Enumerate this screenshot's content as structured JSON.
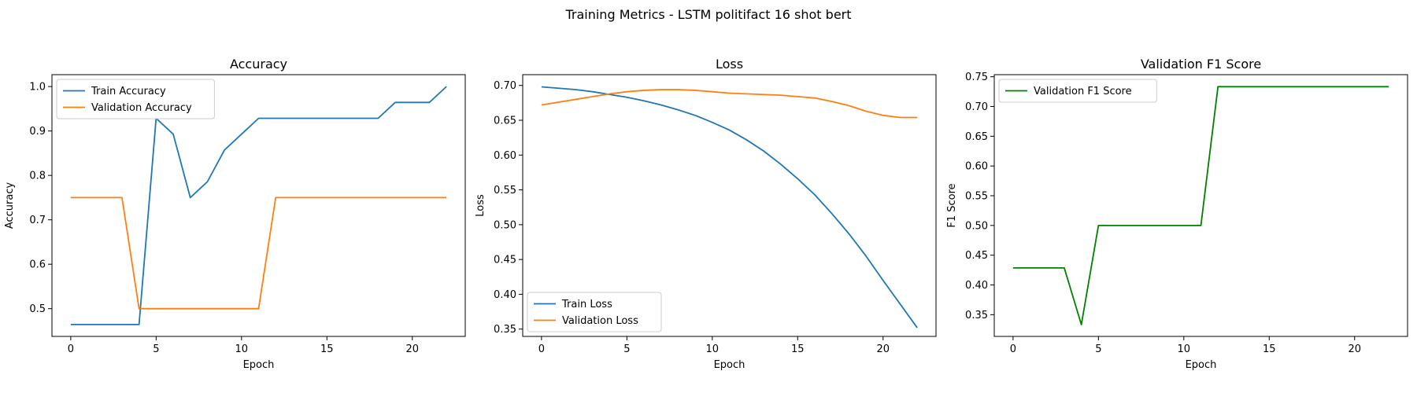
{
  "figure": {
    "suptitle": "Training Metrics - LSTM politifact 16 shot bert"
  },
  "chart_data": [
    {
      "type": "line",
      "title": "Accuracy",
      "xlabel": "Epoch",
      "ylabel": "Accuracy",
      "xlim": [
        -1.1,
        23.1
      ],
      "ylim": [
        0.4375,
        1.0268
      ],
      "xticks": [
        0,
        5,
        10,
        15,
        20
      ],
      "yticks": [
        0.5,
        0.6,
        0.7,
        0.8,
        0.9,
        1.0
      ],
      "ytick_labels": [
        "0.5",
        "0.6",
        "0.7",
        "0.8",
        "0.9",
        "1.0"
      ],
      "legend": "top-left",
      "grid": false,
      "x": [
        0,
        1,
        2,
        3,
        4,
        5,
        6,
        7,
        8,
        9,
        10,
        11,
        12,
        13,
        14,
        15,
        16,
        17,
        18,
        19,
        20,
        21,
        22
      ],
      "series": [
        {
          "name": "Train Accuracy",
          "color": "#1f77b4",
          "values": [
            0.4643,
            0.4643,
            0.4643,
            0.4643,
            0.4643,
            0.9286,
            0.8929,
            0.75,
            0.7857,
            0.8571,
            0.8929,
            0.9286,
            0.9286,
            0.9286,
            0.9286,
            0.9286,
            0.9286,
            0.9286,
            0.9286,
            0.9643,
            0.9643,
            0.9643,
            1.0
          ]
        },
        {
          "name": "Validation Accuracy",
          "color": "#ff7f0e",
          "values": [
            0.75,
            0.75,
            0.75,
            0.75,
            0.5,
            0.5,
            0.5,
            0.5,
            0.5,
            0.5,
            0.5,
            0.5,
            0.75,
            0.75,
            0.75,
            0.75,
            0.75,
            0.75,
            0.75,
            0.75,
            0.75,
            0.75,
            0.75
          ]
        }
      ]
    },
    {
      "type": "line",
      "title": "Loss",
      "xlabel": "Epoch",
      "ylabel": "Loss",
      "xlim": [
        -1.1,
        23.1
      ],
      "ylim": [
        0.3395,
        0.7155
      ],
      "xticks": [
        0,
        5,
        10,
        15,
        20
      ],
      "yticks": [
        0.35,
        0.4,
        0.45,
        0.5,
        0.55,
        0.6,
        0.65,
        0.7
      ],
      "ytick_labels": [
        "0.35",
        "0.40",
        "0.45",
        "0.50",
        "0.55",
        "0.60",
        "0.65",
        "0.70"
      ],
      "legend": "bottom-left",
      "grid": false,
      "x": [
        0,
        1,
        2,
        3,
        4,
        5,
        6,
        7,
        8,
        9,
        10,
        11,
        12,
        13,
        14,
        15,
        16,
        17,
        18,
        19,
        20,
        21,
        22
      ],
      "series": [
        {
          "name": "Train Loss",
          "color": "#1f77b4",
          "values": [
            0.698,
            0.696,
            0.694,
            0.691,
            0.687,
            0.683,
            0.678,
            0.672,
            0.665,
            0.657,
            0.647,
            0.636,
            0.622,
            0.606,
            0.587,
            0.566,
            0.543,
            0.516,
            0.487,
            0.455,
            0.42,
            0.386,
            0.352
          ]
        },
        {
          "name": "Validation Loss",
          "color": "#ff7f0e",
          "values": [
            0.672,
            0.676,
            0.68,
            0.684,
            0.688,
            0.691,
            0.693,
            0.694,
            0.694,
            0.693,
            0.691,
            0.689,
            0.688,
            0.687,
            0.686,
            0.684,
            0.682,
            0.677,
            0.671,
            0.663,
            0.657,
            0.654,
            0.654
          ]
        }
      ]
    },
    {
      "type": "line",
      "title": "Validation F1 Score",
      "xlabel": "Epoch",
      "ylabel": "F1 Score",
      "xlim": [
        -1.1,
        23.1
      ],
      "ylim": [
        0.3135,
        0.7535
      ],
      "xticks": [
        0,
        5,
        10,
        15,
        20
      ],
      "yticks": [
        0.35,
        0.4,
        0.45,
        0.5,
        0.55,
        0.6,
        0.65,
        0.7,
        0.75
      ],
      "ytick_labels": [
        "0.35",
        "0.40",
        "0.45",
        "0.50",
        "0.55",
        "0.60",
        "0.65",
        "0.70",
        "0.75"
      ],
      "legend": "top-left",
      "grid": false,
      "x": [
        0,
        1,
        2,
        3,
        4,
        5,
        6,
        7,
        8,
        9,
        10,
        11,
        12,
        13,
        14,
        15,
        16,
        17,
        18,
        19,
        20,
        21,
        22
      ],
      "series": [
        {
          "name": "Validation F1 Score",
          "color": "#008000",
          "values": [
            0.4286,
            0.4286,
            0.4286,
            0.4286,
            0.3333,
            0.5,
            0.5,
            0.5,
            0.5,
            0.5,
            0.5,
            0.5,
            0.7333,
            0.7333,
            0.7333,
            0.7333,
            0.7333,
            0.7333,
            0.7333,
            0.7333,
            0.7333,
            0.7333,
            0.7333
          ]
        }
      ]
    }
  ]
}
